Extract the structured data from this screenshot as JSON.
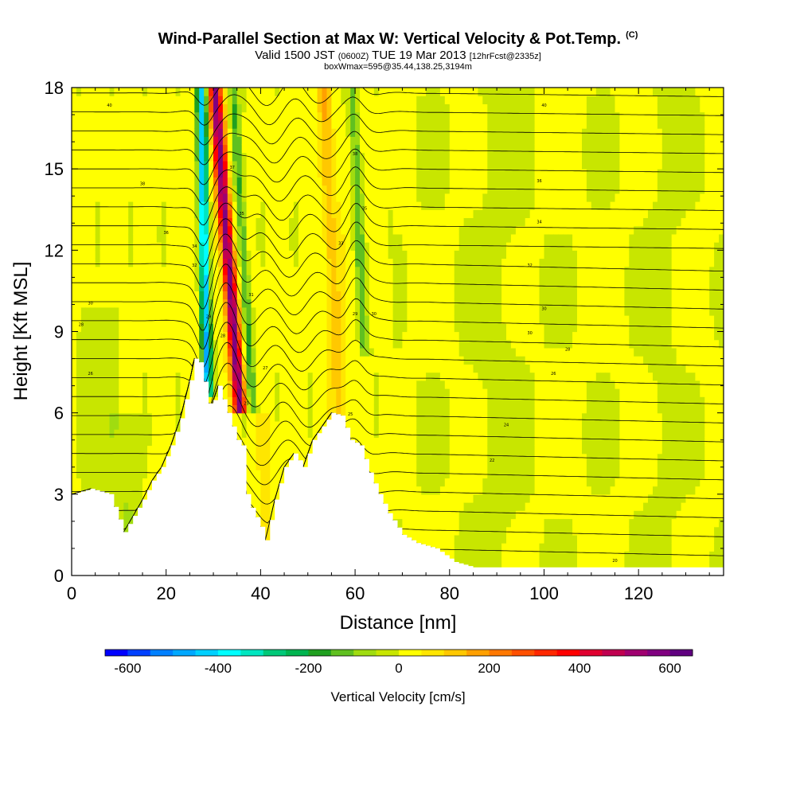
{
  "header": {
    "title": "Wind-Parallel Section at Max W: Vertical Velocity & Pot.Temp.",
    "copyright": "(C)",
    "valid_prefix": "Valid 1500 JST",
    "valid_zulu": "(0600Z)",
    "valid_date": "TUE 19 Mar 2013",
    "forecast": "[12hrFcst@2335z]",
    "box_info": "boxWmax=595@35.44,138.25,3194m"
  },
  "chart_data": {
    "type": "heatmap",
    "xlabel": "Distance [nm]",
    "ylabel": "Height [Kft MSL]",
    "xlim": [
      0,
      138
    ],
    "ylim": [
      0,
      18
    ],
    "x_ticks": [
      0,
      20,
      40,
      60,
      80,
      100,
      120
    ],
    "y_ticks": [
      0,
      3,
      6,
      9,
      12,
      15,
      18
    ],
    "colorbar": {
      "label": "Vertical Velocity [cm/s]",
      "range": [
        -650,
        650
      ],
      "step": 50,
      "tick_values": [
        -600,
        -400,
        -200,
        0,
        200,
        400,
        600
      ],
      "tick_labels": [
        "-600",
        "-400",
        "-200",
        "0",
        "200",
        "400",
        "600"
      ],
      "colors": [
        "#0000ff",
        "#0040ff",
        "#0080ff",
        "#00a8ff",
        "#00d0ff",
        "#00ffff",
        "#00e6c0",
        "#00c878",
        "#00b450",
        "#20a020",
        "#60c020",
        "#a0dc10",
        "#c8e600",
        "#ffff00",
        "#ffe600",
        "#ffc800",
        "#ffa000",
        "#ff7800",
        "#ff5000",
        "#ff2800",
        "#ff0000",
        "#e00030",
        "#c00050",
        "#a00070",
        "#800080",
        "#600080"
      ]
    },
    "terrain_kft": [
      [
        0,
        3.0
      ],
      [
        4,
        3.2
      ],
      [
        8,
        3.0
      ],
      [
        11,
        1.6
      ],
      [
        13,
        2.2
      ],
      [
        15,
        2.8
      ],
      [
        17,
        3.5
      ],
      [
        19,
        4.0
      ],
      [
        21,
        4.8
      ],
      [
        23,
        5.8
      ],
      [
        25,
        7.2
      ],
      [
        26,
        8.0
      ],
      [
        27.5,
        7.8
      ],
      [
        28.5,
        6.5
      ],
      [
        29.5,
        6.2
      ],
      [
        31,
        7.0
      ],
      [
        33,
        6.0
      ],
      [
        35,
        5.0
      ],
      [
        36,
        4.8
      ],
      [
        37,
        3.0
      ],
      [
        38,
        2.5
      ],
      [
        40,
        1.8
      ],
      [
        41,
        1.3
      ],
      [
        43,
        2.8
      ],
      [
        45,
        4.0
      ],
      [
        47,
        4.5
      ],
      [
        49,
        4.0
      ],
      [
        51,
        5.0
      ],
      [
        53,
        5.5
      ],
      [
        55,
        6.0
      ],
      [
        57,
        5.9
      ],
      [
        59,
        5.0
      ],
      [
        61,
        4.8
      ],
      [
        63,
        3.8
      ],
      [
        65,
        3.0
      ],
      [
        67,
        2.3
      ],
      [
        70,
        1.5
      ],
      [
        73,
        1.2
      ],
      [
        77,
        1.0
      ],
      [
        81,
        0.5
      ],
      [
        85,
        0.3
      ],
      [
        95,
        0.3
      ],
      [
        110,
        0.3
      ],
      [
        125,
        0.3
      ],
      [
        138,
        0.3
      ]
    ],
    "theta_labels": [
      {
        "x": 8,
        "y": 17.3,
        "t": "40"
      },
      {
        "x": 100,
        "y": 17.3,
        "t": "40"
      },
      {
        "x": 60,
        "y": 15.5,
        "t": "38"
      },
      {
        "x": 15,
        "y": 14.4,
        "t": "38"
      },
      {
        "x": 99,
        "y": 14.5,
        "t": "36"
      },
      {
        "x": 20,
        "y": 12.6,
        "t": "36"
      },
      {
        "x": 99,
        "y": 13.0,
        "t": "34"
      },
      {
        "x": 26,
        "y": 12.1,
        "t": "34"
      },
      {
        "x": 97,
        "y": 11.4,
        "t": "32"
      },
      {
        "x": 26,
        "y": 11.4,
        "t": "32"
      },
      {
        "x": 100,
        "y": 9.8,
        "t": "30"
      },
      {
        "x": 4,
        "y": 10.0,
        "t": "30"
      },
      {
        "x": 97,
        "y": 8.9,
        "t": "30"
      },
      {
        "x": 2,
        "y": 9.2,
        "t": "28"
      },
      {
        "x": 105,
        "y": 8.3,
        "t": "28"
      },
      {
        "x": 4,
        "y": 7.4,
        "t": "26"
      },
      {
        "x": 102,
        "y": 7.4,
        "t": "26"
      },
      {
        "x": 92,
        "y": 5.5,
        "t": "24"
      },
      {
        "x": 89,
        "y": 4.2,
        "t": "22"
      },
      {
        "x": 115,
        "y": 0.5,
        "t": "20"
      },
      {
        "x": 34,
        "y": 15.0,
        "t": "37"
      },
      {
        "x": 36,
        "y": 13.3,
        "t": "35"
      },
      {
        "x": 38,
        "y": 10.3,
        "t": "31"
      },
      {
        "x": 41,
        "y": 7.6,
        "t": "27"
      },
      {
        "x": 62,
        "y": 13.5,
        "t": "35"
      },
      {
        "x": 57,
        "y": 12.2,
        "t": "33"
      },
      {
        "x": 60,
        "y": 9.6,
        "t": "29"
      },
      {
        "x": 64,
        "y": 9.6,
        "t": "30"
      },
      {
        "x": 59,
        "y": 5.9,
        "t": "25"
      },
      {
        "x": 32,
        "y": 8.8,
        "t": "28"
      },
      {
        "x": 29,
        "y": 9.5,
        "t": "29"
      },
      {
        "x": 37,
        "y": 6.3,
        "t": "25"
      }
    ]
  }
}
